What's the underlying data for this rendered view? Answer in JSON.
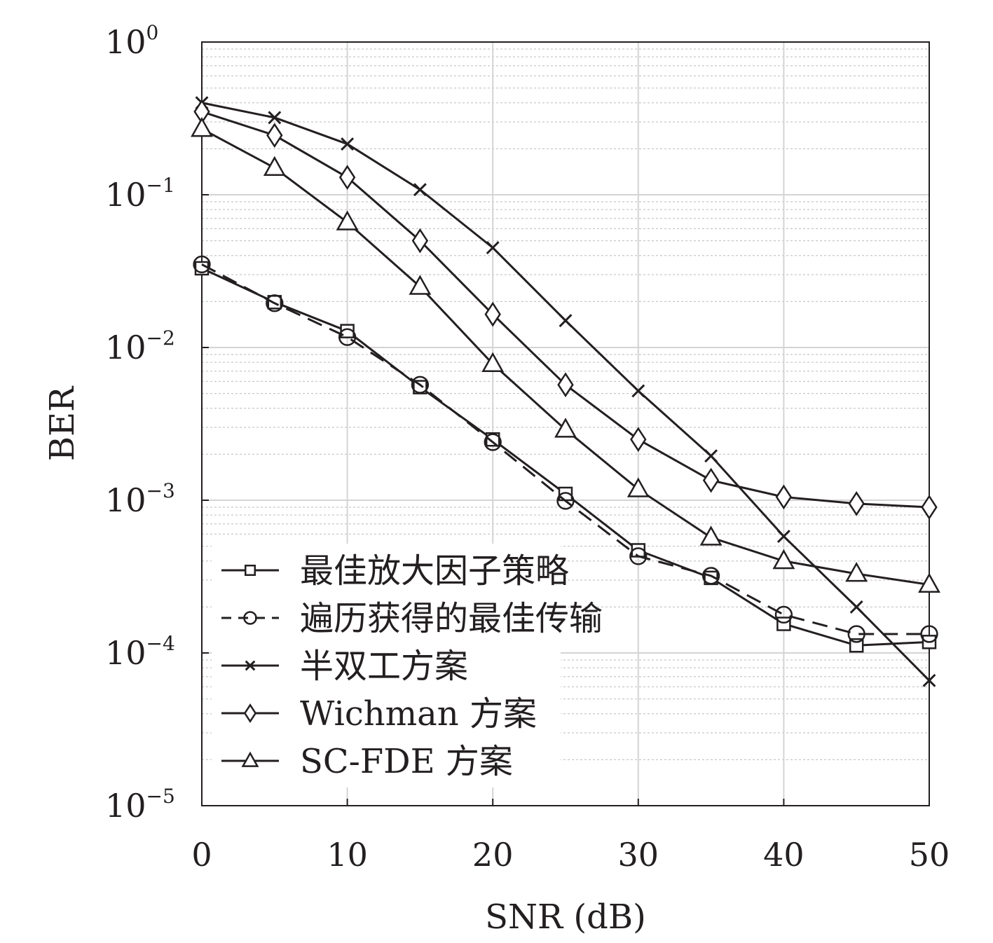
{
  "chart_data": {
    "type": "line",
    "xlabel": "SNR (dB)",
    "ylabel": "BER",
    "x_scale": "linear",
    "y_scale": "log",
    "xlim": [
      0,
      50
    ],
    "ylim": [
      1e-05,
      1
    ],
    "x_ticks": [
      {
        "value": 0,
        "label": "0"
      },
      {
        "value": 10,
        "label": "10"
      },
      {
        "value": 20,
        "label": "20"
      },
      {
        "value": 30,
        "label": "30"
      },
      {
        "value": 40,
        "label": "40"
      },
      {
        "value": 50,
        "label": "50"
      }
    ],
    "y_ticks": [
      {
        "value": 1,
        "base": "10",
        "exp": "0"
      },
      {
        "value": 0.1,
        "base": "10",
        "exp": "−1"
      },
      {
        "value": 0.01,
        "base": "10",
        "exp": "−2"
      },
      {
        "value": 0.001,
        "base": "10",
        "exp": "−3"
      },
      {
        "value": 0.0001,
        "base": "10",
        "exp": "−4"
      },
      {
        "value": 1e-05,
        "base": "10",
        "exp": "−5"
      }
    ],
    "grid": true,
    "legend_position": "bottom-left",
    "x": [
      0,
      5,
      10,
      15,
      20,
      25,
      30,
      35,
      40,
      45,
      50
    ],
    "series": [
      {
        "name": "最佳放大因子策略",
        "marker": "square",
        "dash": "solid",
        "values": [
          0.033,
          0.0198,
          0.0128,
          0.0055,
          0.0025,
          0.0011,
          0.00047,
          0.00031,
          0.000155,
          0.000112,
          0.000118
        ]
      },
      {
        "name": "遍历获得的最佳传输",
        "marker": "circle",
        "dash": "dashed",
        "values": [
          0.035,
          0.0195,
          0.0117,
          0.0057,
          0.0024,
          0.00099,
          0.00043,
          0.00032,
          0.000178,
          0.000133,
          0.000133
        ]
      },
      {
        "name": "半双工方案",
        "marker": "x",
        "dash": "solid",
        "values": [
          0.4,
          0.32,
          0.215,
          0.108,
          0.045,
          0.015,
          0.0052,
          0.00195,
          0.00058,
          0.0002,
          6.6e-05
        ]
      },
      {
        "name": "Wichman 方案",
        "marker": "diamond",
        "dash": "solid",
        "values": [
          0.35,
          0.245,
          0.13,
          0.05,
          0.0165,
          0.0057,
          0.0025,
          0.00135,
          0.00105,
          0.00095,
          0.0009
        ]
      },
      {
        "name": "SC-FDE 方案",
        "marker": "triangle",
        "dash": "solid",
        "values": [
          0.27,
          0.15,
          0.066,
          0.025,
          0.0078,
          0.0029,
          0.00118,
          0.00057,
          0.0004,
          0.00033,
          0.00028
        ]
      }
    ],
    "colors": {
      "line": "#231f20",
      "major_grid": "#d4d4d4",
      "minor_grid": "#c8c8c8",
      "background": "#ffffff"
    }
  }
}
